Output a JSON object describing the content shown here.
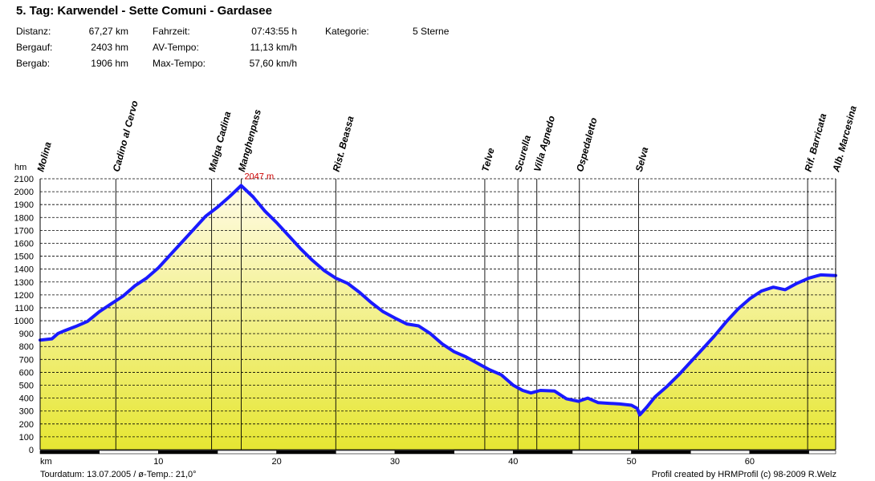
{
  "header": {
    "title": "5. Tag: Karwendel - Sette Comuni - Gardasee",
    "stats": {
      "distanz_label": "Distanz:",
      "distanz_value": "67,27 km",
      "bergauf_label": "Bergauf:",
      "bergauf_value": "2403 hm",
      "bergab_label": "Bergab:",
      "bergab_value": "1906 hm",
      "fahrzeit_label": "Fahrzeit:",
      "fahrzeit_value": "07:43:55 h",
      "avtempo_label": "AV-Tempo:",
      "avtempo_value": "11,13 km/h",
      "maxtempo_label": "Max-Tempo:",
      "maxtempo_value": "57,60 km/h",
      "kategorie_label": "Kategorie:",
      "kategorie_value": "5 Sterne"
    }
  },
  "footer": {
    "left": "Tourdatum: 13.07.2005  /  ø-Temp.: 21,0°",
    "right": "Profil created by HRMProfil (c) 98-2009 R.Welz"
  },
  "chart_data": {
    "type": "area",
    "ylabel": "hm",
    "xlabel": "km",
    "xlim": [
      0,
      67.27
    ],
    "ylim": [
      0,
      2100
    ],
    "x_ticks": [
      10,
      20,
      30,
      40,
      50,
      60
    ],
    "y_ticks": [
      0,
      100,
      200,
      300,
      400,
      500,
      600,
      700,
      800,
      900,
      1000,
      1100,
      1200,
      1300,
      1400,
      1500,
      1600,
      1700,
      1800,
      1900,
      2000,
      2100
    ],
    "grid": true,
    "line_color": "#1a1aff",
    "fill_top_color": "#fffbe6",
    "fill_bottom_color": "#e6e632",
    "annotation": {
      "label": "2047 m",
      "x": 17,
      "y": 2047,
      "color": "#cc0000"
    },
    "waypoints": [
      {
        "name": "Molina",
        "x": 0
      },
      {
        "name": "Cadino al Cervo",
        "x": 6.4
      },
      {
        "name": "Malga Cadina",
        "x": 14.5
      },
      {
        "name": "Manghenpass",
        "x": 17.0
      },
      {
        "name": "Rist. Beassa",
        "x": 25.0
      },
      {
        "name": "Telve",
        "x": 37.6
      },
      {
        "name": "Scurella",
        "x": 40.4
      },
      {
        "name": "Villa Agnedo",
        "x": 42.0
      },
      {
        "name": "Ospedaletto",
        "x": 45.6
      },
      {
        "name": "Selva",
        "x": 50.6
      },
      {
        "name": "Rif. Barricata",
        "x": 64.9
      },
      {
        "name": "Alb. Marcesina",
        "x": 67.27
      }
    ],
    "profile": {
      "x": [
        0,
        1,
        1.5,
        2,
        3,
        4,
        5,
        6,
        7,
        8,
        9,
        10,
        11,
        12,
        13,
        14,
        15,
        16,
        17,
        18,
        19,
        20,
        21,
        22,
        23,
        24,
        25,
        26,
        27,
        28,
        29,
        30,
        31,
        32,
        33,
        34,
        35,
        36,
        37,
        38,
        39,
        40,
        40.8,
        41.5,
        42.3,
        43.5,
        44.5,
        45.5,
        46.3,
        47.2,
        48.1,
        49,
        50,
        50.5,
        50.7,
        51.3,
        52,
        53,
        54,
        55,
        56,
        57,
        58,
        59,
        60,
        61,
        62,
        63,
        64,
        65,
        66,
        67.27
      ],
      "y": [
        850,
        860,
        900,
        920,
        955,
        995,
        1070,
        1130,
        1190,
        1270,
        1330,
        1410,
        1510,
        1610,
        1710,
        1810,
        1880,
        1960,
        2047,
        1960,
        1850,
        1760,
        1660,
        1560,
        1470,
        1390,
        1330,
        1290,
        1220,
        1140,
        1070,
        1020,
        975,
        960,
        900,
        820,
        760,
        720,
        670,
        620,
        580,
        500,
        460,
        440,
        460,
        455,
        395,
        375,
        400,
        365,
        360,
        355,
        345,
        320,
        270,
        330,
        410,
        490,
        580,
        680,
        780,
        880,
        990,
        1090,
        1170,
        1230,
        1260,
        1240,
        1290,
        1330,
        1355,
        1350
      ]
    }
  }
}
